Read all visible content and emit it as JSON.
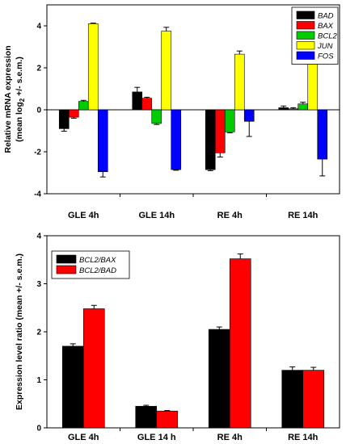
{
  "chart_data": [
    {
      "type": "bar",
      "title": "",
      "xlabel": "",
      "ylabel_line1": "Relative mRNA expression",
      "ylabel_line2_pre": "(mean log",
      "ylabel_line2_sub": "2",
      "ylabel_line2_post": " +/- s.e.m.)",
      "ylim": [
        -4,
        5
      ],
      "yticks": [
        -4,
        -2,
        0,
        2,
        4
      ],
      "legend_position": "top-right",
      "categories": [
        "GLE 4h",
        "GLE 14h",
        "RE 4h",
        "RE 14h"
      ],
      "series": [
        {
          "name": "BAD",
          "color": "#000000",
          "values": [
            -0.9,
            0.85,
            -2.85,
            0.1
          ],
          "errors": [
            0.12,
            0.22,
            0.05,
            0.08
          ]
        },
        {
          "name": "BAX",
          "color": "#ff0000",
          "values": [
            -0.35,
            0.55,
            -2.05,
            0.05
          ],
          "errors": [
            0.05,
            0.05,
            0.2,
            0.05
          ]
        },
        {
          "name": "BCL2",
          "color": "#00cc00",
          "values": [
            0.4,
            -0.65,
            -1.05,
            0.28
          ],
          "errors": [
            0.05,
            0.05,
            0.05,
            0.08
          ]
        },
        {
          "name": "JUN",
          "color": "#ffff00",
          "values": [
            4.1,
            3.75,
            2.65,
            2.3
          ],
          "errors": [
            0.03,
            0.18,
            0.15,
            0.03
          ]
        },
        {
          "name": "FOS",
          "color": "#0000ff",
          "values": [
            -2.95,
            -2.85,
            -0.55,
            -2.35
          ],
          "errors": [
            0.25,
            0.03,
            0.72,
            0.8
          ]
        }
      ]
    },
    {
      "type": "bar",
      "title": "",
      "xlabel": "",
      "ylabel_line1": "Expression level ratio (mean +/- s.e.m.)",
      "ylim": [
        0,
        4
      ],
      "yticks": [
        0,
        1,
        2,
        3,
        4
      ],
      "legend_position": "top-left",
      "categories": [
        "GLE 4h",
        "GLE 14 h",
        "RE 4h",
        "RE 14h"
      ],
      "series": [
        {
          "name": "BCL2/BAX",
          "color": "#000000",
          "values": [
            1.7,
            0.45,
            2.05,
            1.2
          ],
          "errors": [
            0.05,
            0.02,
            0.05,
            0.07
          ]
        },
        {
          "name": "BCL2/BAD",
          "color": "#ff0000",
          "values": [
            2.48,
            0.35,
            3.52,
            1.2
          ],
          "errors": [
            0.07,
            0.01,
            0.1,
            0.06
          ]
        }
      ]
    }
  ]
}
